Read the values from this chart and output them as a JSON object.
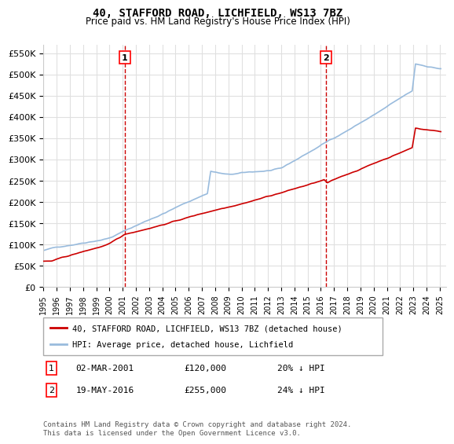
{
  "title": "40, STAFFORD ROAD, LICHFIELD, WS13 7BZ",
  "subtitle": "Price paid vs. HM Land Registry's House Price Index (HPI)",
  "red_label": "40, STAFFORD ROAD, LICHFIELD, WS13 7BZ (detached house)",
  "blue_label": "HPI: Average price, detached house, Lichfield",
  "transaction1": {
    "num": "1",
    "date": "02-MAR-2001",
    "price": "£120,000",
    "pct": "20% ↓ HPI"
  },
  "transaction2": {
    "num": "2",
    "date": "19-MAY-2016",
    "price": "£255,000",
    "pct": "24% ↓ HPI"
  },
  "footer": "Contains HM Land Registry data © Crown copyright and database right 2024.\nThis data is licensed under the Open Government Licence v3.0.",
  "ylim": [
    0,
    570000
  ],
  "yticks": [
    0,
    50000,
    100000,
    150000,
    200000,
    250000,
    300000,
    350000,
    400000,
    450000,
    500000,
    550000
  ],
  "ytick_labels": [
    "£0",
    "£50K",
    "£100K",
    "£150K",
    "£200K",
    "£250K",
    "£300K",
    "£350K",
    "£400K",
    "£450K",
    "£500K",
    "£550K"
  ],
  "marker1_year": 2001.17,
  "marker1_price": 120000,
  "marker2_year": 2016.38,
  "marker2_price": 255000,
  "background_color": "#ffffff",
  "grid_color": "#e0e0e0",
  "red_color": "#cc0000",
  "blue_color": "#99bbdd"
}
